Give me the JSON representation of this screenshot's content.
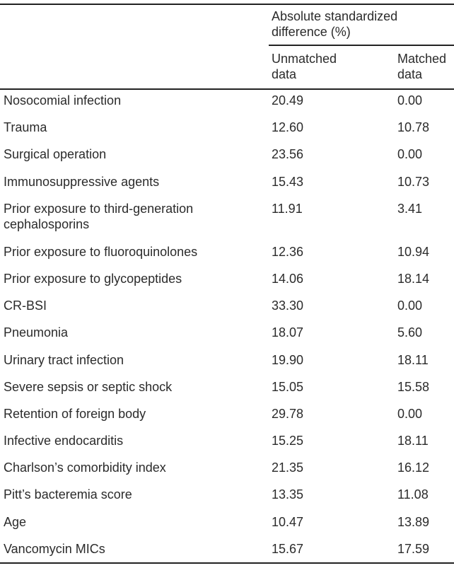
{
  "header": {
    "group_label_line1": "Absolute standardized",
    "group_label_line2": "difference (%)",
    "unmatched_line1": "Unmatched",
    "unmatched_line2": "data",
    "matched_line1": "Matched",
    "matched_line2": "data"
  },
  "rows": [
    {
      "label": "Nosocomial infection",
      "unmatched": "20.49",
      "matched": "0.00"
    },
    {
      "label": "Trauma",
      "unmatched": "12.60",
      "matched": "10.78"
    },
    {
      "label": "Surgical operation",
      "unmatched": "23.56",
      "matched": "0.00"
    },
    {
      "label": "Immunosuppressive agents",
      "unmatched": "15.43",
      "matched": "10.73"
    },
    {
      "label": "Prior exposure to third-generation",
      "label2": "cephalosporins",
      "unmatched": "11.91",
      "matched": "3.41"
    },
    {
      "label": "Prior exposure to fluoroquinolones",
      "unmatched": "12.36",
      "matched": "10.94"
    },
    {
      "label": "Prior exposure to glycopeptides",
      "unmatched": "14.06",
      "matched": "18.14"
    },
    {
      "label": "CR-BSI",
      "unmatched": "33.30",
      "matched": "0.00"
    },
    {
      "label": "Pneumonia",
      "unmatched": "18.07",
      "matched": "5.60"
    },
    {
      "label": "Urinary tract infection",
      "unmatched": "19.90",
      "matched": "18.11"
    },
    {
      "label": "Severe sepsis or septic shock",
      "unmatched": "15.05",
      "matched": "15.58"
    },
    {
      "label": "Retention of foreign body",
      "unmatched": "29.78",
      "matched": "0.00"
    },
    {
      "label": "Infective endocarditis",
      "unmatched": "15.25",
      "matched": "18.11"
    },
    {
      "label": "Charlson’s comorbidity index",
      "unmatched": "21.35",
      "matched": "16.12"
    },
    {
      "label": "Pitt’s bacteremia score",
      "unmatched": "13.35",
      "matched": "11.08"
    },
    {
      "label": "Age",
      "unmatched": "10.47",
      "matched": "13.89"
    },
    {
      "label": "Vancomycin MICs",
      "unmatched": "15.67",
      "matched": "17.59"
    }
  ]
}
